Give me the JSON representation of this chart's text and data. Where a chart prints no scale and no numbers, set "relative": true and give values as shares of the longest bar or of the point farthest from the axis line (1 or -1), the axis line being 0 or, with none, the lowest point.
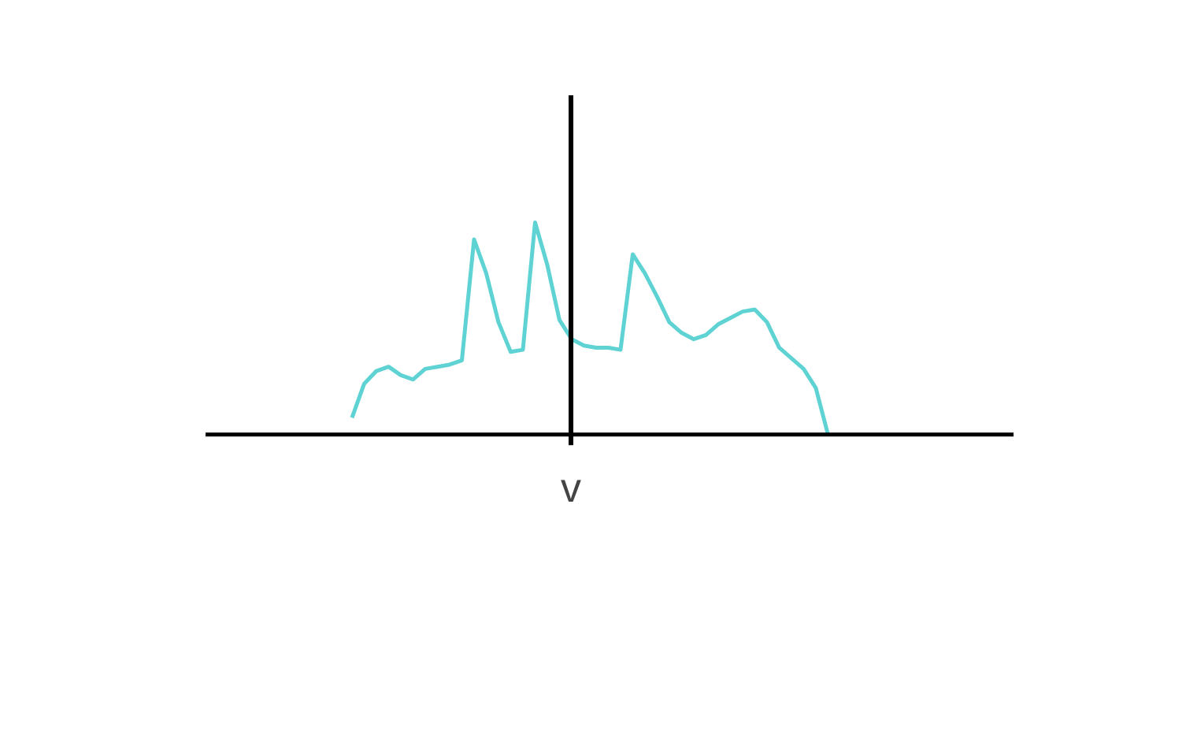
{
  "chart_data": {
    "type": "line",
    "relative": true,
    "categories": [
      null,
      null,
      null,
      null,
      null,
      null,
      null,
      null,
      null,
      null,
      null,
      null,
      null,
      null,
      null,
      null,
      null,
      null,
      null,
      null,
      null,
      null,
      null,
      null,
      null,
      null,
      null,
      null,
      null,
      null,
      null,
      null,
      null,
      null,
      null,
      null,
      null,
      null,
      null,
      null
    ],
    "series": [
      {
        "color": "#5fd3d3",
        "values": [
          0.08,
          0.24,
          0.3,
          0.32,
          0.28,
          0.26,
          0.31,
          0.32,
          0.33,
          0.35,
          0.92,
          0.76,
          0.53,
          0.39,
          0.4,
          1.0,
          0.8,
          0.54,
          0.45,
          0.42,
          0.41,
          0.41,
          0.4,
          0.85,
          0.76,
          0.65,
          0.53,
          0.48,
          0.45,
          0.47,
          0.52,
          0.55,
          0.58,
          0.59,
          0.53,
          0.41,
          0.36,
          0.31,
          0.22,
          0.0
        ]
      }
    ],
    "annotations": [
      "v"
    ],
    "grid": false,
    "marker": "none",
    "line_style": "solid"
  }
}
